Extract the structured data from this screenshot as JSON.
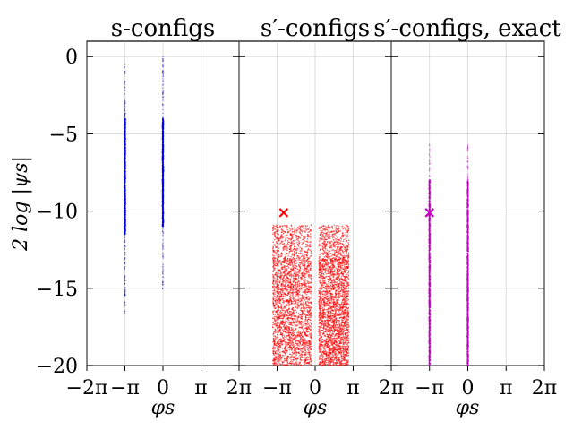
{
  "chart_data": [
    {
      "type": "scatter",
      "title": "s-configs",
      "xlabel": "φs",
      "ylabel": "2 log |ψs|",
      "xlim": [
        -6.2832,
        6.2832
      ],
      "ylim": [
        -20,
        1
      ],
      "xticks": [
        "−2π",
        "−π",
        "0",
        "π",
        "2π"
      ],
      "yticks": [
        "0",
        "−5",
        "−10",
        "−15",
        "−20"
      ],
      "grid": true,
      "series": [
        {
          "color": "#0000ff",
          "columns": [
            {
              "x": -3.1416,
              "y_range": [
                -16.7,
                -0.3
              ],
              "dense_range": [
                -11.5,
                -4.0
              ]
            },
            {
              "x": 0.0,
              "y_range": [
                -15.2,
                0.0
              ],
              "dense_range": [
                -11.0,
                -4.0
              ]
            }
          ]
        }
      ]
    },
    {
      "type": "scatter",
      "title": "s′-configs",
      "xlabel": "φs",
      "xlim": [
        -6.2832,
        6.2832
      ],
      "ylim": [
        -20,
        1
      ],
      "xticks": [
        "−2π",
        "−π",
        "0",
        "π",
        "2π"
      ],
      "grid": true,
      "series": [
        {
          "color": "#ff0000",
          "clusters": [
            {
              "x_range": [
                -3.5,
                -0.3
              ],
              "y_range": [
                -20,
                -10.9
              ],
              "dense_below": -13.0
            },
            {
              "x_range": [
                0.3,
                2.8
              ],
              "y_range": [
                -20,
                -10.9
              ],
              "dense_below": -13.0
            }
          ]
        }
      ],
      "marker": {
        "symbol": "x",
        "x": -2.6,
        "y": -10.1,
        "color": "#ff0000"
      }
    },
    {
      "type": "scatter",
      "title": "s′-configs, exact",
      "xlabel": "φs",
      "xlim": [
        -6.2832,
        6.2832
      ],
      "ylim": [
        -20,
        1
      ],
      "xticks": [
        "−2π",
        "−π",
        "0",
        "π",
        "2π"
      ],
      "grid": true,
      "series": [
        {
          "color": "#bf00bf",
          "columns": [
            {
              "x": -3.1416,
              "y_range": [
                -20,
                -5.6
              ],
              "dense_range": [
                -20,
                -8.0
              ]
            },
            {
              "x": 0.0,
              "y_range": [
                -20,
                -5.6
              ],
              "dense_range": [
                -20,
                -8.0
              ]
            }
          ]
        }
      ],
      "marker": {
        "symbol": "x",
        "x": -3.1416,
        "y": -10.1,
        "color": "#bf00bf"
      }
    }
  ]
}
